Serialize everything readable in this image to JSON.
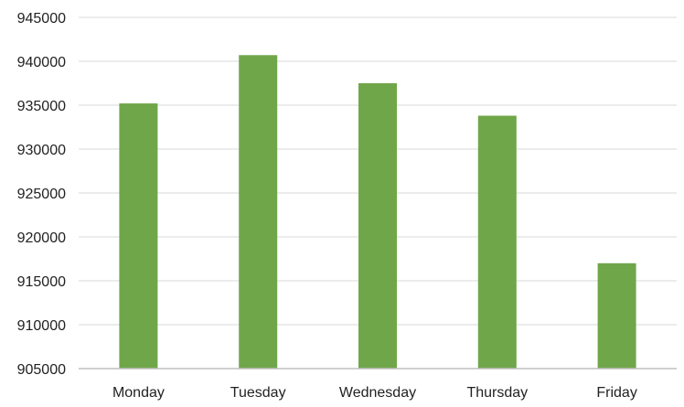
{
  "chart_data": {
    "type": "bar",
    "categories": [
      "Monday",
      "Tuesday",
      "Wednesday",
      "Thursday",
      "Friday"
    ],
    "values": [
      935200,
      940700,
      937500,
      933800,
      917000
    ],
    "y_ticks": [
      "905000",
      "910000",
      "915000",
      "920000",
      "925000",
      "930000",
      "935000",
      "940000",
      "945000"
    ],
    "ylim": [
      905000,
      945000
    ],
    "grid": true,
    "legend": "none",
    "bar_color": "#70a64a",
    "title": "",
    "xlabel": "",
    "ylabel": ""
  }
}
